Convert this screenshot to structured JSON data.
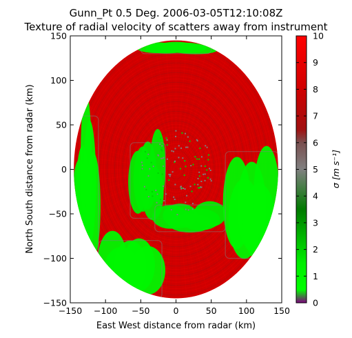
{
  "chart_data": {
    "type": "heatmap",
    "title": "Gunn_Pt 0.5 Deg. 2006-03-05T12:10:08Z",
    "subtitle": "Texture of radial velocity of scatters away from instrument",
    "xlabel": "East West distance from radar (km)",
    "ylabel": "North South distance from radar (km)",
    "xlim": [
      -150,
      150
    ],
    "ylim": [
      -150,
      150
    ],
    "xticks": [
      "−150",
      "−100",
      "−50",
      "0",
      "50",
      "100",
      "150"
    ],
    "yticks": [
      "−150",
      "−100",
      "−50",
      "0",
      "50",
      "100",
      "150"
    ],
    "xtick_values": [
      -150,
      -100,
      -50,
      0,
      50,
      100,
      150
    ],
    "ytick_values": [
      -150,
      -100,
      -50,
      0,
      50,
      100,
      150
    ],
    "colorbar": {
      "label": "σ [m s⁻¹]",
      "range": [
        0,
        10
      ],
      "ticks": [
        "0",
        "1",
        "2",
        "3",
        "4",
        "5",
        "6",
        "7",
        "8",
        "9",
        "10"
      ],
      "tick_values": [
        0,
        1,
        2,
        3,
        4,
        5,
        6,
        7,
        8,
        9,
        10
      ],
      "colormap_stops": [
        {
          "value": 0,
          "color": "#800080"
        },
        {
          "value": 0.5,
          "color": "#00ff00"
        },
        {
          "value": 1.5,
          "color": "#00ee00"
        },
        {
          "value": 3.5,
          "color": "#007a00"
        },
        {
          "value": 5,
          "color": "#808080"
        },
        {
          "value": 6,
          "color": "#7a5050"
        },
        {
          "value": 6.5,
          "color": "#a01010"
        },
        {
          "value": 8,
          "color": "#d00000"
        },
        {
          "value": 10,
          "color": "#ff0000"
        }
      ]
    },
    "data_extent": {
      "x": [
        -145,
        145
      ],
      "y": [
        -145,
        145
      ],
      "shape": "circle",
      "center": [
        0,
        0
      ]
    },
    "dominant_value_range": [
      7,
      9
    ],
    "low_value_regions": [
      {
        "description": "western arc",
        "x": [
          -145,
          -110
        ],
        "y": [
          -100,
          60
        ],
        "approx_value": 1
      },
      {
        "description": "southwest",
        "x": [
          -110,
          -20
        ],
        "y": [
          -145,
          -80
        ],
        "approx_value": 1
      },
      {
        "description": "west-center",
        "x": [
          -65,
          -15
        ],
        "y": [
          -55,
          30
        ],
        "approx_value": 1.5
      },
      {
        "description": "south-center",
        "x": [
          -30,
          70
        ],
        "y": [
          -70,
          -40
        ],
        "approx_value": 1.5
      },
      {
        "description": "east",
        "x": [
          70,
          145
        ],
        "y": [
          -100,
          20
        ],
        "approx_value": 1
      },
      {
        "description": "north rim",
        "x": [
          -50,
          50
        ],
        "y": [
          130,
          145
        ],
        "approx_value": 1
      }
    ]
  }
}
